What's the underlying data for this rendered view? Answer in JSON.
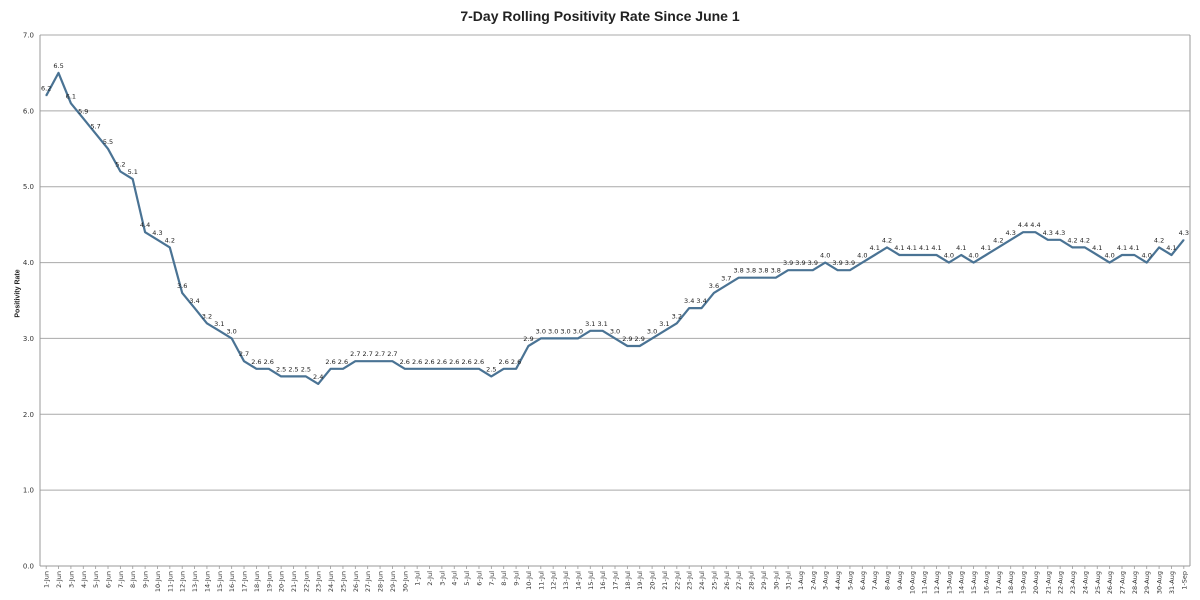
{
  "chart_data": {
    "type": "line",
    "title": "7-Day Rolling Positivity Rate Since June 1",
    "xlabel": "",
    "ylabel": "Positivity Rate",
    "ylim": [
      0,
      7
    ],
    "yticks": [
      "0.0",
      "1.0",
      "2.0",
      "3.0",
      "4.0",
      "5.0",
      "6.0",
      "7.0"
    ],
    "grid": true,
    "line_color": "#4a7394",
    "categories": [
      "1-Jun",
      "2-Jun",
      "3-Jun",
      "4-Jun",
      "5-Jun",
      "6-Jun",
      "7-Jun",
      "8-Jun",
      "9-Jun",
      "10-Jun",
      "11-Jun",
      "12-Jun",
      "13-Jun",
      "14-Jun",
      "15-Jun",
      "16-Jun",
      "17-Jun",
      "18-Jun",
      "19-Jun",
      "20-Jun",
      "21-Jun",
      "22-Jun",
      "23-Jun",
      "24-Jun",
      "25-Jun",
      "26-Jun",
      "27-Jun",
      "28-Jun",
      "29-Jun",
      "30-Jun",
      "1-Jul",
      "2-Jul",
      "3-Jul",
      "4-Jul",
      "5-Jul",
      "6-Jul",
      "7-Jul",
      "8-Jul",
      "9-Jul",
      "10-Jul",
      "11-Jul",
      "12-Jul",
      "13-Jul",
      "14-Jul",
      "15-Jul",
      "16-Jul",
      "17-Jul",
      "18-Jul",
      "19-Jul",
      "20-Jul",
      "21-Jul",
      "22-Jul",
      "23-Jul",
      "24-Jul",
      "25-Jul",
      "26-Jul",
      "27-Jul",
      "28-Jul",
      "29-Jul",
      "30-Jul",
      "31-Jul",
      "1-Aug",
      "2-Aug",
      "3-Aug",
      "4-Aug",
      "5-Aug",
      "6-Aug",
      "7-Aug",
      "8-Aug",
      "9-Aug",
      "10-Aug",
      "11-Aug",
      "12-Aug",
      "13-Aug",
      "14-Aug",
      "15-Aug",
      "16-Aug",
      "17-Aug",
      "18-Aug",
      "19-Aug",
      "20-Aug",
      "21-Aug",
      "22-Aug",
      "23-Aug",
      "24-Aug",
      "25-Aug",
      "26-Aug",
      "27-Aug",
      "28-Aug",
      "29-Aug",
      "30-Aug",
      "31-Aug",
      "1-Sep"
    ],
    "values": [
      6.2,
      6.5,
      6.1,
      5.9,
      5.7,
      5.5,
      5.2,
      5.1,
      4.4,
      4.3,
      4.2,
      3.6,
      3.4,
      3.2,
      3.1,
      3.0,
      2.7,
      2.6,
      2.6,
      2.5,
      2.5,
      2.5,
      2.4,
      2.6,
      2.6,
      2.7,
      2.7,
      2.7,
      2.7,
      2.6,
      2.6,
      2.6,
      2.6,
      2.6,
      2.6,
      2.6,
      2.5,
      2.6,
      2.6,
      2.9,
      3.0,
      3.0,
      3.0,
      3.0,
      3.1,
      3.1,
      3.0,
      2.9,
      2.9,
      3.0,
      3.1,
      3.2,
      3.4,
      3.4,
      3.6,
      3.7,
      3.8,
      3.8,
      3.8,
      3.8,
      3.9,
      3.9,
      3.9,
      4.0,
      3.9,
      3.9,
      4.0,
      4.1,
      4.2,
      4.1,
      4.1,
      4.1,
      4.1,
      4.0,
      4.1,
      4.0,
      4.1,
      4.2,
      4.3,
      4.4,
      4.4,
      4.3,
      4.3,
      4.2,
      4.2,
      4.1,
      4.0,
      4.1,
      4.1,
      4.0,
      4.2,
      4.1,
      4.3
    ],
    "labels": [
      "6.2",
      "6.5",
      "6.1",
      "5.9",
      "5.7",
      "5.5",
      "5.2",
      "5.1",
      "4.4",
      "4.3",
      "4.2",
      "3.6",
      "3.4",
      "3.2",
      "3.1",
      "3.0",
      "2.7",
      "2.6",
      "2.6",
      "2.5",
      "2.5",
      "2.5",
      "2.4",
      "2.6",
      "2.6",
      "2.7",
      "2.7",
      "2.7",
      "2.7",
      "2.6",
      "2.6",
      "2.6",
      "2.6",
      "2.6",
      "2.6",
      "2.6",
      "2.5",
      "2.6",
      "2.6",
      "2.9",
      "3.0",
      "3.0",
      "3.0",
      "3.0",
      "3.1",
      "3.1",
      "3.0",
      "2.9",
      "2.9",
      "3.0",
      "3.1",
      "3.2",
      "3.4",
      "3.4",
      "3.6",
      "3.7",
      "3.8",
      "3.8",
      "3.8",
      "3.8",
      "3.9",
      "3.9",
      "3.9",
      "4.0",
      "3.9",
      "3.9",
      "4.0",
      "4.1",
      "4.2",
      "4.1",
      "4.1",
      "4.1",
      "4.1",
      "4.0",
      "4.1",
      "4.0",
      "4.1",
      "4.2",
      "4.3",
      "4.4",
      "4.4",
      "4.3",
      "4.3",
      "4.2",
      "4.2",
      "4.1",
      "4.0",
      "4.1",
      "4.1",
      "4.0",
      "4.2",
      "4.1",
      "4.3"
    ]
  }
}
